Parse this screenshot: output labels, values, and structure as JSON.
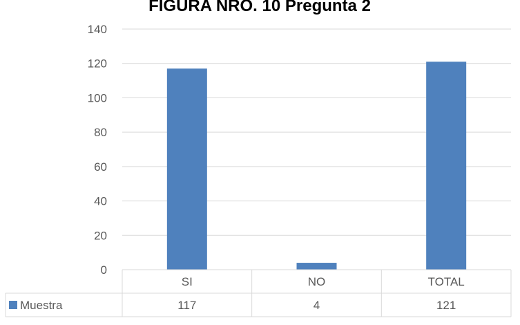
{
  "chart_data": {
    "type": "bar",
    "title": "FIGURA NRO.  10 Pregunta 2",
    "categories": [
      "SI",
      "NO",
      "TOTAL"
    ],
    "series": [
      {
        "name": "Muestra",
        "values": [
          117,
          4,
          121
        ],
        "color": "#4F81BD"
      }
    ],
    "data_table_values": [
      "117",
      "4",
      "121"
    ],
    "ylim": [
      0,
      140
    ],
    "yticks": [
      "0",
      "20",
      "40",
      "60",
      "80",
      "100",
      "120",
      "140"
    ],
    "grid": true,
    "legend": "data-table"
  }
}
